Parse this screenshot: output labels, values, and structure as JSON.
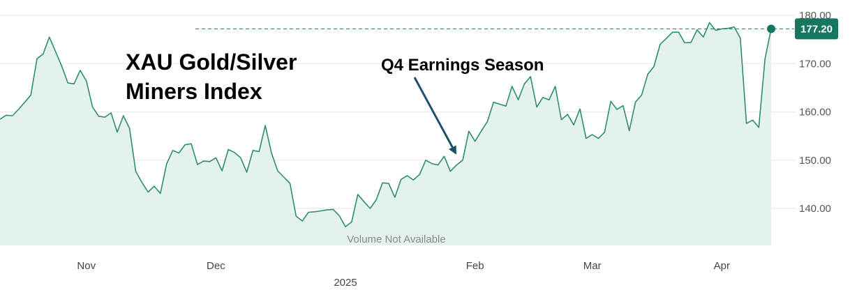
{
  "chart_data": {
    "type": "area",
    "title_lines": [
      "XAU Gold/Silver",
      "Miners Index"
    ],
    "annotation": "Q4 Earnings Season",
    "volume_note": "Volume Not Available",
    "last_value_label": "177.20",
    "last_value": 177.2,
    "ylim": [
      133,
      181
    ],
    "yticks": [
      140,
      150,
      160,
      170,
      180
    ],
    "ytick_labels": [
      "140.00",
      "150.00",
      "160.00",
      "170.00",
      "180.00"
    ],
    "xticks": [
      {
        "label": "Nov",
        "index": 14
      },
      {
        "label": "Dec",
        "index": 35
      },
      {
        "label": "Feb",
        "index": 77
      },
      {
        "label": "Mar",
        "index": 96
      },
      {
        "label": "Apr",
        "index": 117
      }
    ],
    "year_label": {
      "label": "2025",
      "index": 56
    },
    "annotation_index": 75,
    "grid": true,
    "colors": {
      "line": "#2e8b74",
      "fill": "#e4f2ee",
      "grid": "#e6e6e6",
      "badge": "#157760",
      "arrow": "#1d4f6a"
    },
    "values": [
      158.5,
      159.3,
      159.2,
      160.5,
      162.0,
      163.5,
      171.0,
      172.0,
      175.5,
      172.5,
      169.5,
      166.0,
      165.8,
      168.6,
      166.4,
      161.0,
      159.1,
      158.9,
      159.8,
      155.8,
      159.2,
      156.6,
      147.7,
      145.4,
      143.4,
      144.6,
      143.1,
      149.2,
      152.0,
      151.5,
      153.2,
      153.4,
      149.1,
      149.8,
      149.7,
      150.5,
      147.8,
      152.2,
      151.6,
      150.5,
      147.5,
      152.0,
      151.8,
      157.2,
      151.5,
      147.8,
      146.5,
      145.2,
      138.4,
      137.4,
      139.2,
      139.3,
      139.5,
      139.7,
      139.8,
      138.5,
      136.2,
      137.2,
      142.9,
      141.4,
      140.0,
      141.8,
      145.3,
      145.2,
      142.3,
      146.0,
      146.8,
      145.9,
      147.0,
      150.0,
      149.3,
      149.0,
      150.8,
      147.7,
      149.0,
      150.0,
      156.0,
      153.9,
      156.0,
      158.0,
      162.0,
      161.6,
      161.2,
      165.3,
      162.5,
      165.8,
      167.3,
      161.0,
      163.0,
      162.5,
      165.3,
      158.4,
      159.5,
      157.3,
      160.6,
      154.5,
      155.3,
      154.5,
      155.8,
      162.2,
      160.5,
      161.3,
      156.1,
      162.0,
      163.5,
      167.8,
      169.4,
      174.0,
      175.2,
      176.5,
      176.5,
      174.3,
      174.4,
      177.0,
      175.5,
      178.5,
      176.9,
      177.2,
      177.3,
      177.6,
      175.3,
      157.6,
      158.3,
      156.8,
      171.0,
      177.2
    ]
  }
}
